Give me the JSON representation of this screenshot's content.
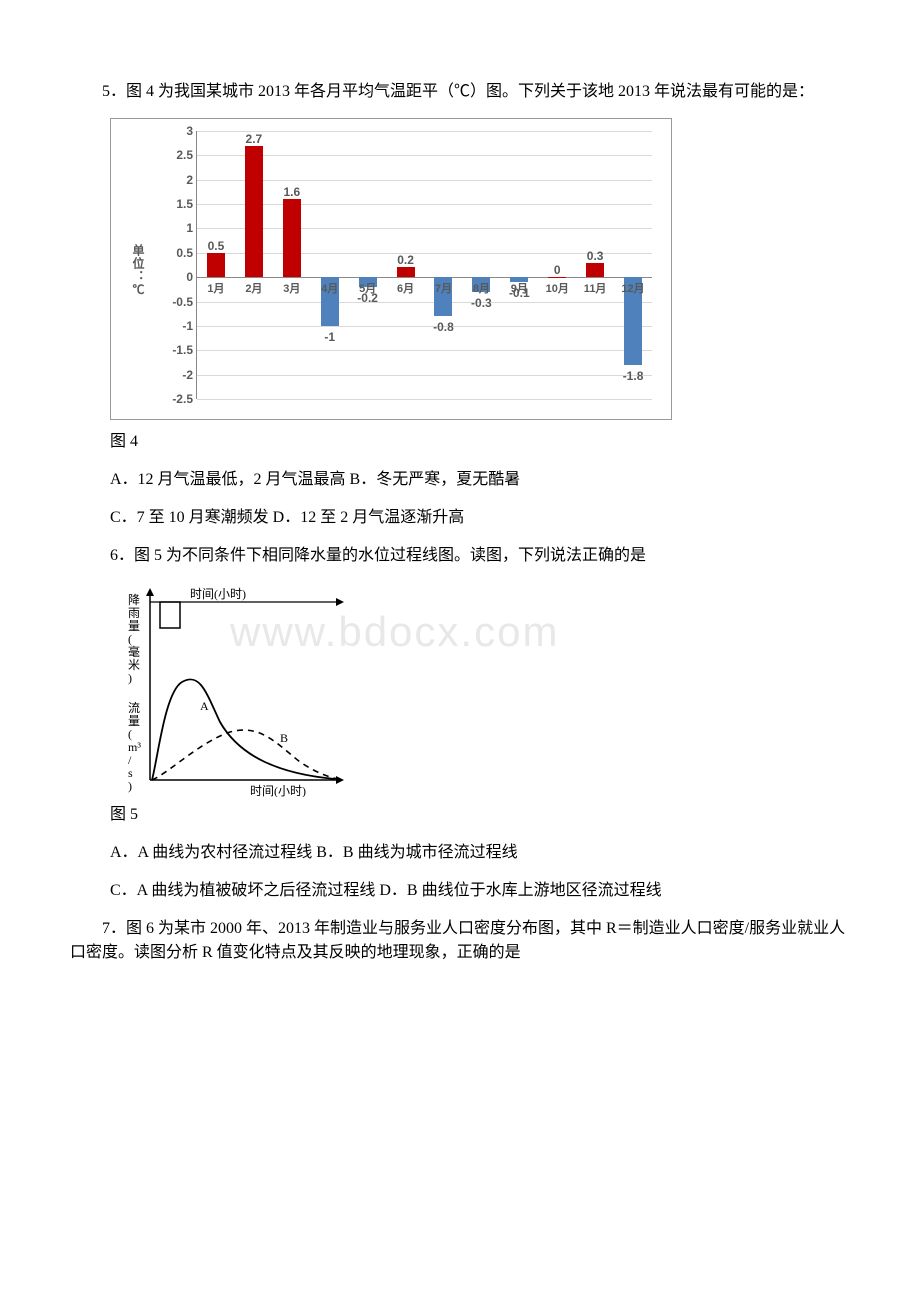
{
  "watermark": "www.bdocx.com",
  "q5": {
    "text": "5．图 4 为我国某城市 2013 年各月平均气温距平（℃）图。下列关于该地 2013 年说法最有可能的是：",
    "caption": "图 4",
    "optA": "A．12 月气温最低，2 月气温最高 B．冬无严寒，夏无酷暑",
    "optC": "C．7 至 10 月寒潮频发 D．12 至 2 月气温逐渐升高"
  },
  "q6": {
    "text": "6．图 5 为不同条件下相同降水量的水位过程线图。读图，下列说法正确的是",
    "caption": "图 5",
    "optA": "A．A 曲线为农村径流过程线 B．B 曲线为城市径流过程线",
    "optC": "C．A 曲线为植被破坏之后径流过程线 D．B 曲线位于水库上游地区径流过程线",
    "labels": {
      "rain_y": "降雨量(毫米)",
      "time_top": "时间(小时)",
      "flow_y": "流量(m³/s)",
      "time_bottom": "时间(小时)",
      "A": "A",
      "B": "B"
    }
  },
  "q7": {
    "text": "7．图 6 为某市 2000 年、2013 年制造业与服务业人口密度分布图，其中 R＝制造业人口密度/服务业就业人口密度。读图分析 R 值变化特点及其反映的地理现象，正确的是"
  },
  "chart4": {
    "ytitle": "单位：℃",
    "ymin": -2.5,
    "ymax": 3.0,
    "ystep": 0.5,
    "axis_color": "#888888",
    "grid_color": "#d9d9d9",
    "red": "#c00000",
    "blue": "#4f81bd",
    "months": [
      "1月",
      "2月",
      "3月",
      "4月",
      "5月",
      "6月",
      "7月",
      "8月",
      "9月",
      "10月",
      "11月",
      "12月"
    ],
    "values": [
      0.5,
      2.7,
      1.6,
      -1.0,
      -0.2,
      0.2,
      -0.8,
      -0.3,
      -0.1,
      0.0,
      0.3,
      -1.8
    ],
    "labels": [
      "0.5",
      "2.7",
      "1.6",
      "-1",
      "-0.2",
      "0.2",
      "-0.8",
      "-0.3",
      "-0.1",
      "0",
      "0.3",
      "-1.8"
    ]
  }
}
